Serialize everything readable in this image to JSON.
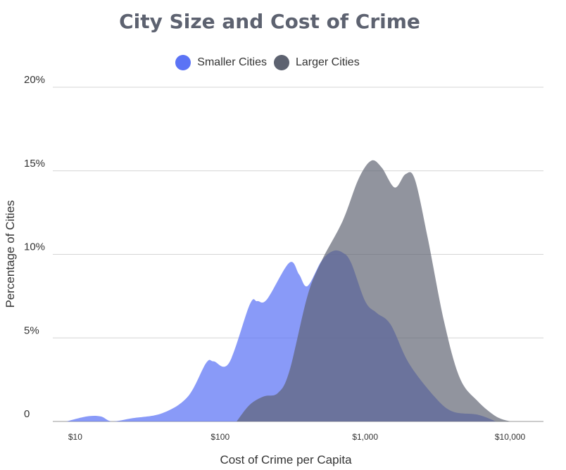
{
  "chart_data": {
    "type": "area",
    "title": "City Size and Cost of Crime",
    "xlabel": "Cost of Crime per Capita",
    "ylabel": "Percentage of Cities",
    "x_scale": "log",
    "xlim": [
      7,
      17000
    ],
    "ylim": [
      0,
      20
    ],
    "y_ticks": [
      {
        "value": 0,
        "label": "0"
      },
      {
        "value": 5,
        "label": "5%"
      },
      {
        "value": 10,
        "label": "10%"
      },
      {
        "value": 15,
        "label": "15%"
      },
      {
        "value": 20,
        "label": "20%"
      }
    ],
    "x_ticks": [
      {
        "value": 10,
        "label": "$10"
      },
      {
        "value": 100,
        "label": "$100"
      },
      {
        "value": 1000,
        "label": "$1,000"
      },
      {
        "value": 10000,
        "label": "$10,000"
      }
    ],
    "grid": true,
    "legend_position": "top-center",
    "series": [
      {
        "name": "Smaller Cities",
        "color": "#5b73f5",
        "points": [
          [
            8.7,
            0
          ],
          [
            12,
            0.3
          ],
          [
            15,
            0.3
          ],
          [
            18,
            0
          ],
          [
            25,
            0.2
          ],
          [
            40,
            0.5
          ],
          [
            60,
            1.5
          ],
          [
            80,
            3.5
          ],
          [
            90,
            3.6
          ],
          [
            115,
            3.5
          ],
          [
            160,
            7
          ],
          [
            180,
            7.2
          ],
          [
            210,
            7.3
          ],
          [
            300,
            9.5
          ],
          [
            350,
            8.8
          ],
          [
            400,
            8.1
          ],
          [
            500,
            9.6
          ],
          [
            600,
            10.2
          ],
          [
            700,
            10.1
          ],
          [
            800,
            9.5
          ],
          [
            1000,
            7.2
          ],
          [
            1200,
            6.5
          ],
          [
            1500,
            5.8
          ],
          [
            2000,
            3.5
          ],
          [
            3000,
            1.5
          ],
          [
            4000,
            0.6
          ],
          [
            6000,
            0.4
          ],
          [
            8000,
            0
          ]
        ]
      },
      {
        "name": "Larger Cities",
        "color": "#5d6270",
        "points": [
          [
            130,
            0
          ],
          [
            160,
            1
          ],
          [
            200,
            1.5
          ],
          [
            250,
            1.7
          ],
          [
            300,
            3
          ],
          [
            400,
            7.5
          ],
          [
            500,
            9.6
          ],
          [
            700,
            12
          ],
          [
            900,
            14.5
          ],
          [
            1100,
            15.6
          ],
          [
            1300,
            15.2
          ],
          [
            1600,
            14
          ],
          [
            1900,
            14.8
          ],
          [
            2200,
            14.5
          ],
          [
            2700,
            11
          ],
          [
            3500,
            6
          ],
          [
            4500,
            2.6
          ],
          [
            6000,
            1.2
          ],
          [
            8000,
            0.3
          ],
          [
            10000,
            0
          ]
        ]
      }
    ]
  }
}
